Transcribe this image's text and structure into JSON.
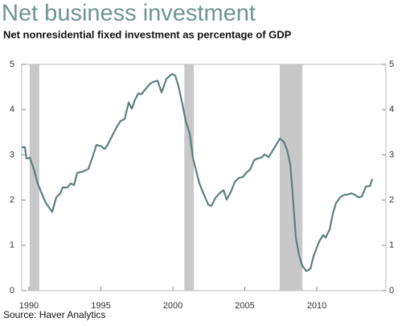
{
  "chart_data": {
    "type": "line",
    "title": "Net business investment",
    "subtitle": "Net nonresidential fixed investment as percentage of GDP",
    "source": "Source: Haver Analytics",
    "xlim": [
      1989.5,
      2014.8
    ],
    "xticks": [
      1990,
      1995,
      2000,
      2005,
      2010
    ],
    "ylim": [
      0,
      5
    ],
    "yticks": [
      0,
      1,
      2,
      3,
      4,
      5
    ],
    "recessions": [
      [
        1990.05,
        1990.72
      ],
      [
        2000.8,
        2001.45
      ],
      [
        2007.43,
        2009.0
      ]
    ],
    "recession_color": "#c8c8c8",
    "x": [
      1989.5,
      1989.72,
      1989.83,
      1990.06,
      1990.34,
      1990.61,
      1990.89,
      1991.17,
      1991.62,
      1991.9,
      1992.18,
      1992.35,
      1992.68,
      1992.91,
      1993.13,
      1993.35,
      1993.74,
      1994.13,
      1994.41,
      1994.69,
      1995.03,
      1995.25,
      1995.47,
      1995.75,
      1996.09,
      1996.37,
      1996.65,
      1996.93,
      1997.15,
      1997.37,
      1997.6,
      1997.82,
      1998.04,
      1998.38,
      1998.6,
      1998.94,
      1999.22,
      1999.55,
      1999.94,
      2000.17,
      2000.39,
      2000.67,
      2000.89,
      2001.17,
      2001.4,
      2001.62,
      2001.84,
      2002.12,
      2002.46,
      2002.68,
      2002.96,
      2003.24,
      2003.52,
      2003.74,
      2004.08,
      2004.3,
      2004.58,
      2004.86,
      2005.14,
      2005.36,
      2005.64,
      2005.87,
      2006.15,
      2006.37,
      2006.65,
      2006.87,
      2007.21,
      2007.43,
      2007.71,
      2007.93,
      2008.16,
      2008.32,
      2008.55,
      2008.77,
      2008.99,
      2009.27,
      2009.55,
      2009.78,
      2010.17,
      2010.45,
      2010.61,
      2010.89,
      2011.12,
      2011.34,
      2011.62,
      2011.9,
      2012.12,
      2012.4,
      2012.63,
      2012.91,
      2013.13,
      2013.41,
      2013.69,
      2013.85
    ],
    "series": [
      {
        "color": "#5b807f",
        "values": [
          3.17,
          3.17,
          2.92,
          2.94,
          2.69,
          2.37,
          2.15,
          1.94,
          1.74,
          2.06,
          2.15,
          2.28,
          2.28,
          2.37,
          2.33,
          2.6,
          2.63,
          2.69,
          2.94,
          3.22,
          3.19,
          3.13,
          3.22,
          3.4,
          3.61,
          3.75,
          3.79,
          4.16,
          4.02,
          4.22,
          4.36,
          4.34,
          4.43,
          4.56,
          4.61,
          4.64,
          4.38,
          4.68,
          4.79,
          4.75,
          4.52,
          4.11,
          3.75,
          3.47,
          2.92,
          2.65,
          2.37,
          2.15,
          1.9,
          1.87,
          2.05,
          2.15,
          2.22,
          2.01,
          2.22,
          2.4,
          2.49,
          2.51,
          2.62,
          2.67,
          2.88,
          2.92,
          2.94,
          3.01,
          2.95,
          3.06,
          3.24,
          3.36,
          3.29,
          3.11,
          2.78,
          2.14,
          1.16,
          0.77,
          0.55,
          0.43,
          0.48,
          0.77,
          1.09,
          1.23,
          1.17,
          1.35,
          1.71,
          1.94,
          2.06,
          2.12,
          2.12,
          2.15,
          2.12,
          2.06,
          2.08,
          2.3,
          2.31,
          2.47
        ]
      }
    ]
  }
}
